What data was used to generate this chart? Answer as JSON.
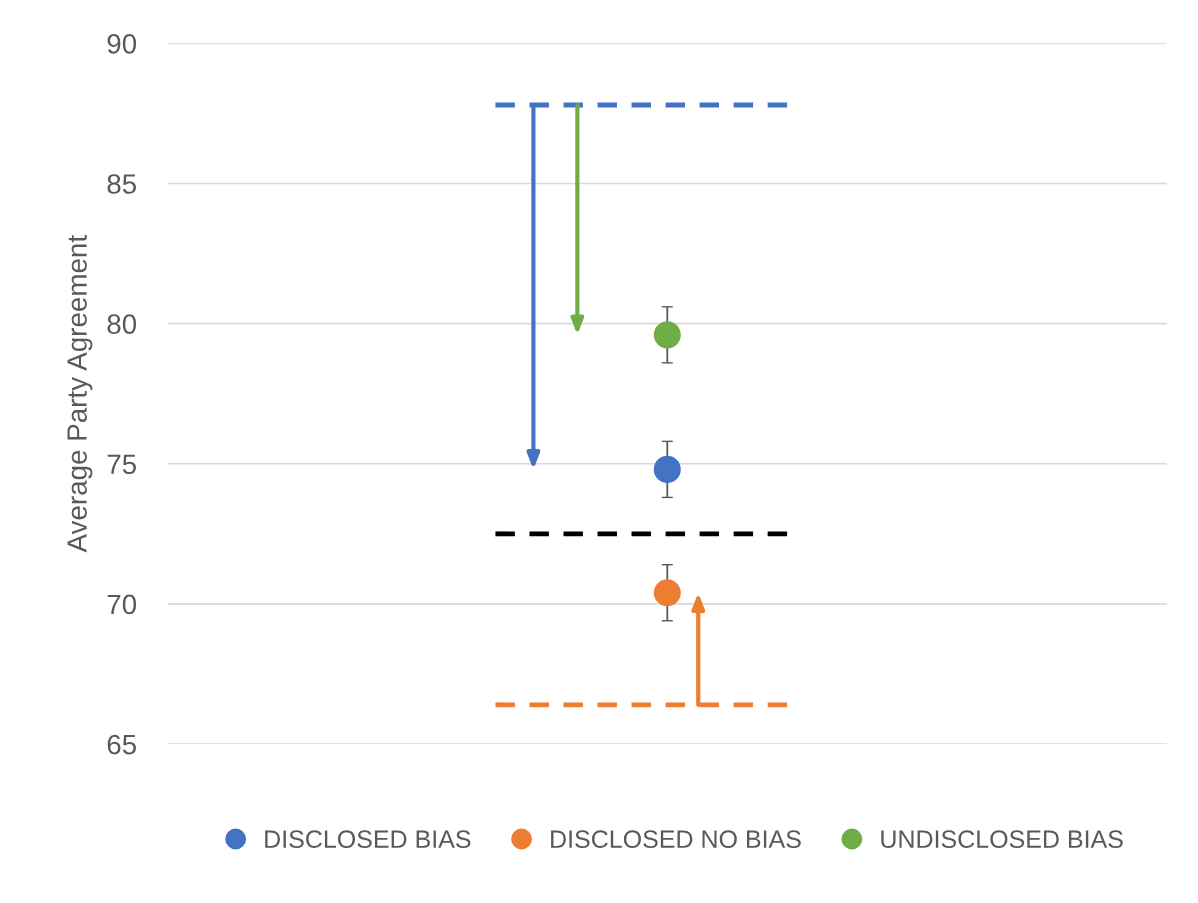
{
  "chart_data": {
    "type": "scatter",
    "ylabel": "Average Party Agreement",
    "categories": [
      null
    ],
    "ylim": [
      65,
      90
    ],
    "yticks": [
      65,
      70,
      75,
      80,
      85,
      90
    ],
    "grid": "y",
    "legend": "bottom",
    "marker": "circle",
    "series": [
      {
        "name": "DISCLOSED BIAS",
        "color": "#4472c4",
        "values": [
          74.8
        ],
        "errors": [
          1.0
        ]
      },
      {
        "name": "DISCLOSED NO BIAS",
        "color": "#ed7d31",
        "values": [
          70.4
        ],
        "errors": [
          1.0
        ]
      },
      {
        "name": "UNDISCLOSED BIAS",
        "color": "#70ad47",
        "values": [
          79.6
        ],
        "errors": [
          1.0
        ]
      }
    ],
    "ref_lines": [
      {
        "axis": "y",
        "value": 87.8,
        "color": "#4472c4",
        "line_style": "dashed"
      },
      {
        "axis": "y",
        "value": 72.5,
        "color": "#000000",
        "line_style": "dashed"
      },
      {
        "axis": "y",
        "value": 66.4,
        "color": "#ed7d31",
        "line_style": "dashed"
      }
    ]
  }
}
